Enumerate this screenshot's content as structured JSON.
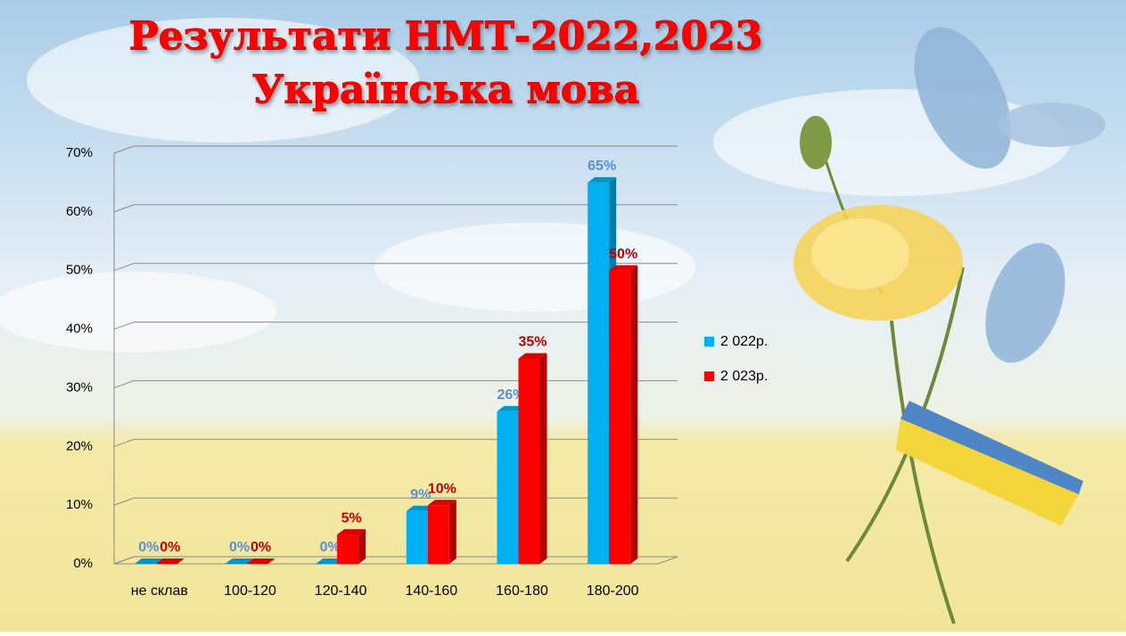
{
  "chart_data": {
    "type": "bar3d",
    "title": "Результати НМТ-2022,2023",
    "subtitle": "Українська мова",
    "categories": [
      "не склав",
      "100-120",
      "120-140",
      "140-160",
      "160-180",
      "180-200"
    ],
    "series": [
      {
        "name": "2 022р.",
        "color": "#00b0f0",
        "label_color": "#5b8fd6",
        "values": [
          0,
          0,
          0,
          9,
          26,
          65
        ],
        "value_labels": [
          "0%",
          "0%",
          "0%",
          "9%",
          "26%",
          "65%"
        ]
      },
      {
        "name": "2 023р.",
        "color": "#ff0000",
        "label_color": "#c00000",
        "values": [
          0,
          0,
          5,
          10,
          35,
          50
        ],
        "value_labels": [
          "0%",
          "0%",
          "5%",
          "10%",
          "35%",
          "50%"
        ]
      }
    ],
    "ylim": [
      0,
      70
    ],
    "yticks": [
      {
        "value": 0,
        "label": "0%"
      },
      {
        "value": 10,
        "label": "10%"
      },
      {
        "value": 20,
        "label": "20%"
      },
      {
        "value": 30,
        "label": "30%"
      },
      {
        "value": 40,
        "label": "40%"
      },
      {
        "value": 50,
        "label": "50%"
      },
      {
        "value": 60,
        "label": "60%"
      },
      {
        "value": 70,
        "label": "70%"
      }
    ],
    "grid": true,
    "legend": "right"
  }
}
